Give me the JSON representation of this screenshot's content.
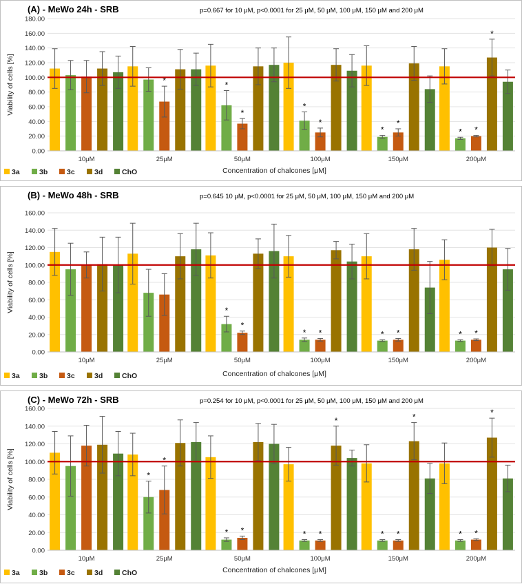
{
  "chart_data": [
    {
      "type": "bar",
      "title": "(A) - MeWo 24h - SRB",
      "stats_note": "p=0.667 for 10 μM, p<0.0001 for 25 μM, 50 μM, 100 μM, 150 μM and 200 μM",
      "xlabel": "Concentration of chalcones [μM]",
      "ylabel": "Viability of cells [%]",
      "ylim": [
        0,
        180
      ],
      "yticks": [
        "0.00",
        "20.00",
        "40.00",
        "60.00",
        "80.00",
        "100.00",
        "120.00",
        "140.00",
        "160.00",
        "180.00"
      ],
      "reference_line": 100,
      "categories": [
        "10μM",
        "25μM",
        "50μM",
        "100μM",
        "150μM",
        "200μM"
      ],
      "series": [
        {
          "name": "3a",
          "color": "#FFC000",
          "values": [
            112,
            115,
            116,
            120,
            116,
            115
          ],
          "errors": [
            27,
            27,
            29,
            35,
            27,
            24
          ],
          "significant": [
            false,
            false,
            false,
            false,
            false,
            false
          ]
        },
        {
          "name": "3b",
          "color": "#70AD47",
          "values": [
            103,
            97,
            62,
            41,
            19,
            17
          ],
          "errors": [
            20,
            16,
            20,
            12,
            2,
            1.5
          ],
          "significant": [
            false,
            false,
            true,
            true,
            true,
            true
          ]
        },
        {
          "name": "3c",
          "color": "#C55A11",
          "values": [
            101,
            67,
            37,
            25,
            25,
            20
          ],
          "errors": [
            22,
            21,
            7,
            6,
            5,
            1
          ],
          "significant": [
            false,
            true,
            true,
            true,
            true,
            true
          ]
        },
        {
          "name": "3d",
          "color": "#997300",
          "values": [
            112,
            111,
            115,
            117,
            119,
            127
          ],
          "errors": [
            23,
            27,
            25,
            22,
            23,
            25
          ],
          "significant": [
            false,
            false,
            false,
            false,
            false,
            true
          ]
        },
        {
          "name": "ChO",
          "color": "#548235",
          "values": [
            107,
            111,
            117,
            109,
            84,
            94
          ],
          "errors": [
            22,
            22,
            23,
            22,
            18,
            16
          ],
          "significant": [
            false,
            false,
            false,
            false,
            false,
            false
          ]
        }
      ]
    },
    {
      "type": "bar",
      "title": "(B) - MeWo 48h - SRB",
      "stats_note": "p=0.645 10 μM, p<0.0001 for 25 μM, 50 μM, 100 μM, 150 μM and 200 μM",
      "xlabel": "Concentration of chalcones [μM]",
      "ylabel": "Viability of cells [%]",
      "ylim": [
        0,
        160
      ],
      "yticks": [
        "0.00",
        "20.00",
        "40.00",
        "60.00",
        "80.00",
        "100.00",
        "120.00",
        "140.00",
        "160.00"
      ],
      "reference_line": 100,
      "categories": [
        "10μM",
        "25μM",
        "50μM",
        "100μM",
        "150μM",
        "200μM"
      ],
      "series": [
        {
          "name": "3a",
          "color": "#FFC000",
          "values": [
            115,
            113,
            111,
            110,
            110,
            106
          ],
          "errors": [
            27,
            35,
            26,
            24,
            26,
            23
          ],
          "significant": [
            false,
            false,
            false,
            false,
            false,
            false
          ]
        },
        {
          "name": "3b",
          "color": "#70AD47",
          "values": [
            95,
            68,
            32,
            14,
            13,
            13
          ],
          "errors": [
            30,
            27,
            9,
            2,
            1,
            1
          ],
          "significant": [
            false,
            false,
            true,
            true,
            true,
            true
          ]
        },
        {
          "name": "3c",
          "color": "#C55A11",
          "values": [
            100,
            66,
            22,
            14,
            14,
            14
          ],
          "errors": [
            15,
            24,
            2,
            1.5,
            1.5,
            1
          ],
          "significant": [
            false,
            false,
            true,
            true,
            true,
            true
          ]
        },
        {
          "name": "3d",
          "color": "#997300",
          "values": [
            101,
            110,
            113,
            117,
            118,
            120
          ],
          "errors": [
            31,
            26,
            17,
            10,
            24,
            21
          ],
          "significant": [
            false,
            false,
            false,
            false,
            false,
            false
          ]
        },
        {
          "name": "ChO",
          "color": "#548235",
          "values": [
            100,
            118,
            116,
            104,
            74,
            95
          ],
          "errors": [
            32,
            30,
            31,
            20,
            30,
            24
          ],
          "significant": [
            false,
            false,
            false,
            false,
            false,
            false
          ]
        }
      ]
    },
    {
      "type": "bar",
      "title": "(C) - MeWo 72h - SRB",
      "stats_note": "p=0.254 for 10 μM, p<0.0001 for 25 μM, 50 μM, 100 μM, 150 μM and 200 μM",
      "xlabel": "Concentration of chalcones [μM]",
      "ylabel": "Viability of cells [%]",
      "ylim": [
        0,
        160
      ],
      "yticks": [
        "0.00",
        "20.00",
        "40.00",
        "60.00",
        "80.00",
        "100.00",
        "120.00",
        "140.00",
        "160.00"
      ],
      "reference_line": 100,
      "categories": [
        "10μM",
        "25μM",
        "50μM",
        "100μM",
        "150μM",
        "200μM"
      ],
      "series": [
        {
          "name": "3a",
          "color": "#FFC000",
          "values": [
            110,
            108,
            105,
            97,
            98,
            98
          ],
          "errors": [
            24,
            24,
            24,
            19,
            21,
            23
          ],
          "significant": [
            false,
            false,
            false,
            false,
            false,
            false
          ]
        },
        {
          "name": "3b",
          "color": "#70AD47",
          "values": [
            95,
            60,
            12,
            11,
            11,
            11
          ],
          "errors": [
            34,
            18,
            2,
            1,
            1,
            1
          ],
          "significant": [
            false,
            true,
            true,
            true,
            true,
            true
          ]
        },
        {
          "name": "3c",
          "color": "#C55A11",
          "values": [
            118,
            68,
            14,
            11,
            11,
            12
          ],
          "errors": [
            23,
            27,
            2,
            1,
            1,
            1
          ],
          "significant": [
            false,
            true,
            true,
            true,
            true,
            true
          ]
        },
        {
          "name": "3d",
          "color": "#997300",
          "values": [
            119,
            121,
            122,
            118,
            123,
            127
          ],
          "errors": [
            32,
            26,
            21,
            22,
            21,
            22
          ],
          "significant": [
            false,
            false,
            false,
            true,
            true,
            true
          ]
        },
        {
          "name": "ChO",
          "color": "#548235",
          "values": [
            109,
            122,
            120,
            104,
            81,
            81
          ],
          "errors": [
            25,
            22,
            22,
            9,
            17,
            15
          ],
          "significant": [
            false,
            false,
            false,
            false,
            false,
            false
          ]
        }
      ]
    }
  ],
  "ref_line_color": "#C00000",
  "significance_marker": "*"
}
